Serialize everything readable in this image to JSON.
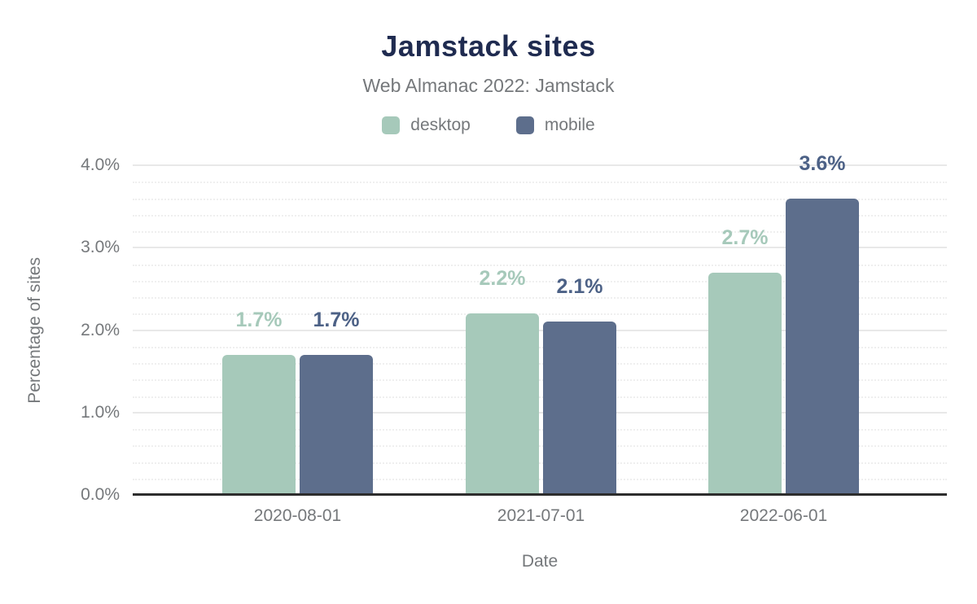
{
  "chart_data": {
    "type": "bar",
    "title": "Jamstack sites",
    "subtitle": "Web Almanac 2022: Jamstack",
    "xlabel": "Date",
    "ylabel": "Percentage of sites",
    "categories": [
      "2020-08-01",
      "2021-07-01",
      "2022-06-01"
    ],
    "series": [
      {
        "name": "desktop",
        "color": "#a6c9ba",
        "label_color": "#a6c9ba",
        "values": [
          1.7,
          2.2,
          2.7
        ],
        "value_labels": [
          "1.7%",
          "2.2%",
          "2.7%"
        ]
      },
      {
        "name": "mobile",
        "color": "#5d6e8c",
        "label_color": "#4c6186",
        "values": [
          1.7,
          2.1,
          3.6
        ],
        "value_labels": [
          "1.7%",
          "2.1%",
          "3.6%"
        ]
      }
    ],
    "ylim": [
      0,
      4
    ],
    "yticks": [
      0,
      1,
      2,
      3,
      4
    ],
    "ytick_labels": [
      "0.0%",
      "1.0%",
      "2.0%",
      "3.0%",
      "4.0%"
    ],
    "minor_tick_step": 0.2,
    "grid": true,
    "legend_position": "top",
    "colors": {
      "background": "#ffffff",
      "title": "#1f2b50",
      "muted_text": "#75787b",
      "axis_line": "#2d2d2d",
      "major_grid": "#e8e8e8",
      "minor_grid": "#efefef"
    }
  }
}
